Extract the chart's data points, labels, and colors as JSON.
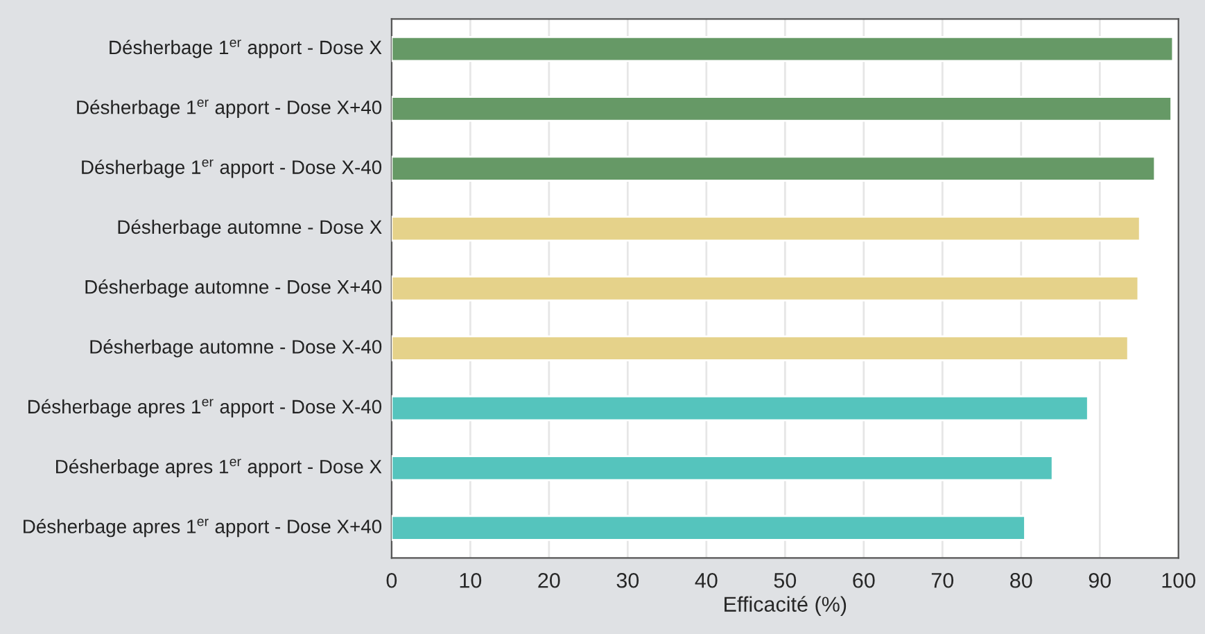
{
  "chart_data": {
    "type": "bar",
    "orientation": "horizontal",
    "categories": [
      "Désherbage 1$^{er}$ apport - Dose X",
      "Désherbage 1$^{er}$ apport - Dose X+40",
      "Désherbage 1$^{er}$ apport - Dose X-40",
      "Désherbage automne - Dose X",
      "Désherbage automne - Dose X+40",
      "Désherbage automne - Dose X-40",
      "Désherbage apres 1$^{er}$ apport - Dose X-40",
      "Désherbage apres 1$^{er}$ apport - Dose X",
      "Désherbage apres 1$^{er}$ apport - Dose X+40"
    ],
    "values": [
      99.3,
      99.1,
      97.0,
      95.1,
      94.9,
      93.6,
      88.5,
      84.0,
      80.5
    ],
    "colors": [
      "#669966",
      "#669966",
      "#669966",
      "#e5d28a",
      "#e5d28a",
      "#e5d28a",
      "#55c4bd",
      "#55c4bd",
      "#55c4bd"
    ],
    "xlabel": "Efficacité (%)",
    "xlim": [
      0,
      100
    ],
    "xticks": [
      0,
      10,
      20,
      30,
      40,
      50,
      60,
      70,
      80,
      90,
      100
    ],
    "grid": "x",
    "legend": false
  }
}
